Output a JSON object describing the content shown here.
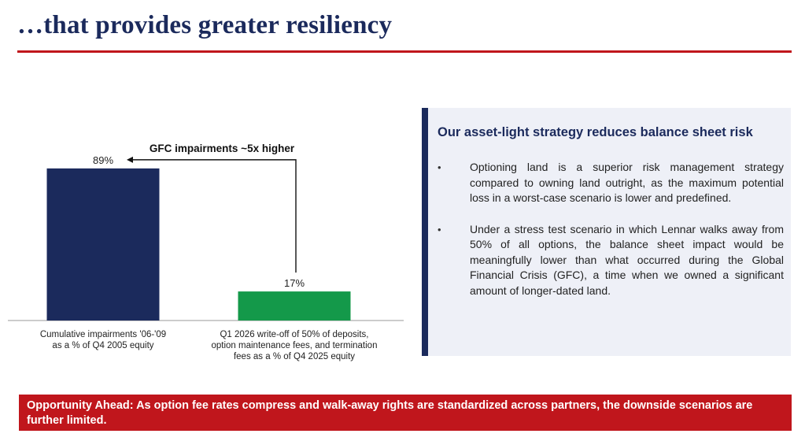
{
  "header": {
    "title": "…that provides greater resiliency"
  },
  "chart_data": {
    "type": "bar",
    "categories": [
      "Cumulative impairments '06-'09 as a % of Q4 2005 equity",
      "Q1 2026 write-off of 50% of deposits, option maintenance fees, and termination fees as a % of Q4 2025 equity"
    ],
    "category_lines": [
      [
        "Cumulative impairments '06-'09",
        "as a % of Q4 2005 equity"
      ],
      [
        "Q1 2026 write-off of 50% of deposits,",
        "option maintenance fees, and termination",
        "fees as a % of Q4 2025 equity"
      ]
    ],
    "values": [
      89,
      17
    ],
    "value_labels": [
      "89%",
      "17%"
    ],
    "colors": [
      "#1b2a5c",
      "#14994a"
    ],
    "ylim": [
      0,
      100
    ],
    "annotation": "GFC impairments ~5x higher",
    "grid": false
  },
  "panel": {
    "heading": "Our asset-light strategy reduces balance sheet risk",
    "accent_color": "#1b2a5c",
    "bullets": [
      {
        "marker": "•",
        "text": "Optioning land is a superior risk management strategy compared to owning land outright, as the maximum potential loss in a worst-case scenario is lower and predefined."
      },
      {
        "marker": "•",
        "text": "Under a stress test scenario in which Lennar walks away from 50% of all options, the balance sheet impact would be meaningfully lower than what occurred during the Global Financial Crisis (GFC), a time when we owned a significant amount of longer-dated land."
      }
    ]
  },
  "footer": {
    "text": "Opportunity Ahead: As option fee rates compress and walk-away rights are standardized across partners, the downside scenarios are further limited.",
    "color": "#c0161c"
  }
}
